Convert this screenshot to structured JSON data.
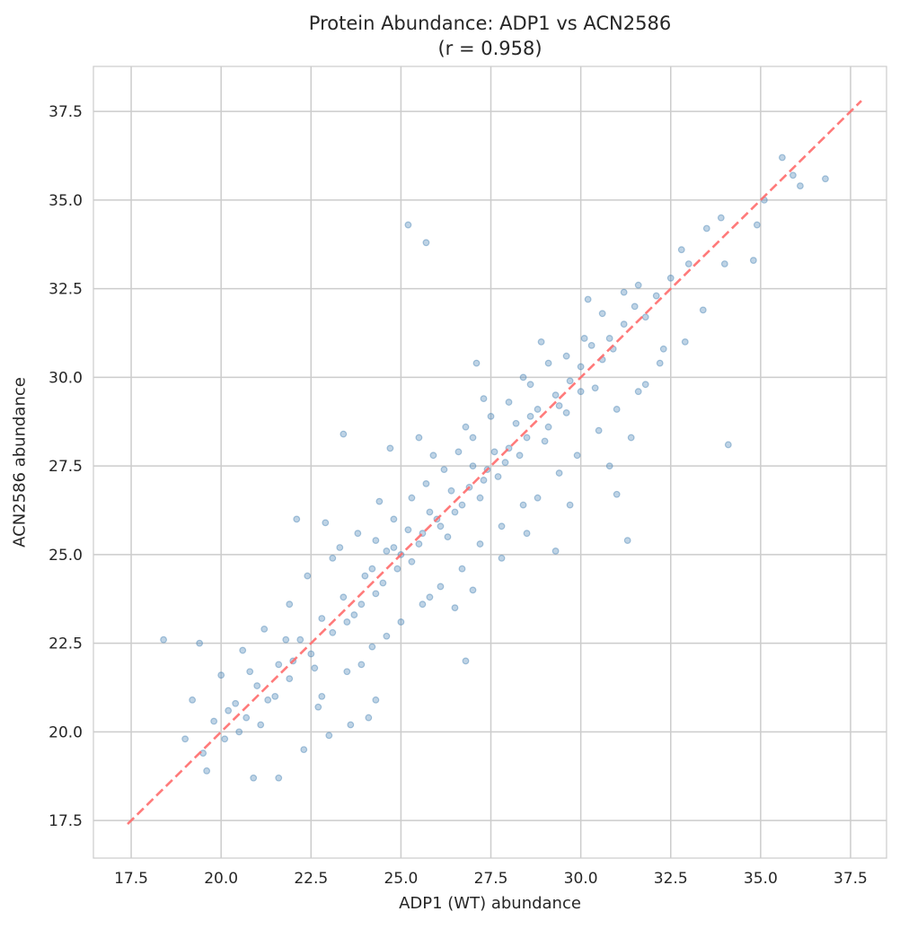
{
  "chart_data": {
    "type": "scatter",
    "title": "Protein Abundance: ADP1 vs ACN2586",
    "subtitle": "(r = 0.958)",
    "xlabel": "ADP1 (WT) abundance",
    "ylabel": "ACN2586 abundance",
    "xlim": [
      16.45,
      38.5
    ],
    "ylim": [
      16.44,
      38.77
    ],
    "xticks": [
      "17.5",
      "20.0",
      "22.5",
      "25.0",
      "27.5",
      "30.0",
      "32.5",
      "35.0",
      "37.5"
    ],
    "yticks": [
      "17.5",
      "20.0",
      "22.5",
      "25.0",
      "27.5",
      "30.0",
      "32.5",
      "35.0",
      "37.5"
    ],
    "grid": true,
    "point_color": "#4682b4",
    "reference_line": {
      "style": "dashed",
      "color": "#ff6b6b",
      "from": [
        17.4,
        17.4
      ],
      "to": [
        37.8,
        37.8
      ]
    },
    "points": [
      [
        25.2,
        34.3
      ],
      [
        25.7,
        33.8
      ],
      [
        34.1,
        28.1
      ],
      [
        23.4,
        28.4
      ],
      [
        31.0,
        26.7
      ],
      [
        31.3,
        25.4
      ],
      [
        29.3,
        25.1
      ],
      [
        26.8,
        22.0
      ],
      [
        18.4,
        22.6
      ],
      [
        19.4,
        22.5
      ],
      [
        36.8,
        35.6
      ],
      [
        35.6,
        36.2
      ],
      [
        35.9,
        35.7
      ],
      [
        36.1,
        35.4
      ],
      [
        35.1,
        35.0
      ],
      [
        34.9,
        34.3
      ],
      [
        33.9,
        34.5
      ],
      [
        32.3,
        30.8
      ],
      [
        31.8,
        29.8
      ],
      [
        22.1,
        26.0
      ],
      [
        22.9,
        25.9
      ],
      [
        24.7,
        28.0
      ],
      [
        25.5,
        28.3
      ],
      [
        27.1,
        30.4
      ],
      [
        28.4,
        30.0
      ],
      [
        28.9,
        31.0
      ],
      [
        30.2,
        32.2
      ],
      [
        34.0,
        33.2
      ],
      [
        34.8,
        33.3
      ],
      [
        33.5,
        34.2
      ],
      [
        33.0,
        33.2
      ],
      [
        32.8,
        33.6
      ],
      [
        32.5,
        32.8
      ],
      [
        32.1,
        32.3
      ],
      [
        31.8,
        31.7
      ],
      [
        31.5,
        32.0
      ],
      [
        31.2,
        31.5
      ],
      [
        30.9,
        30.8
      ],
      [
        30.6,
        30.5
      ],
      [
        30.3,
        30.9
      ],
      [
        30.0,
        29.6
      ],
      [
        29.7,
        29.9
      ],
      [
        29.4,
        29.2
      ],
      [
        29.1,
        28.6
      ],
      [
        28.8,
        29.1
      ],
      [
        28.5,
        28.3
      ],
      [
        28.2,
        28.7
      ],
      [
        27.9,
        27.6
      ],
      [
        27.6,
        27.9
      ],
      [
        27.3,
        27.1
      ],
      [
        27.0,
        27.5
      ],
      [
        26.7,
        26.4
      ],
      [
        26.4,
        26.8
      ],
      [
        26.1,
        25.8
      ],
      [
        25.8,
        26.2
      ],
      [
        25.5,
        25.3
      ],
      [
        25.2,
        25.7
      ],
      [
        24.9,
        24.6
      ],
      [
        24.6,
        25.1
      ],
      [
        24.3,
        23.9
      ],
      [
        24.0,
        24.4
      ],
      [
        23.7,
        23.3
      ],
      [
        23.4,
        23.8
      ],
      [
        23.1,
        22.8
      ],
      [
        22.8,
        23.2
      ],
      [
        22.5,
        22.2
      ],
      [
        22.2,
        22.6
      ],
      [
        21.9,
        21.5
      ],
      [
        21.6,
        21.9
      ],
      [
        21.3,
        20.9
      ],
      [
        21.0,
        21.3
      ],
      [
        20.7,
        20.4
      ],
      [
        20.4,
        20.8
      ],
      [
        20.1,
        19.8
      ],
      [
        19.8,
        20.3
      ],
      [
        19.5,
        19.4
      ],
      [
        19.2,
        20.9
      ],
      [
        19.0,
        19.8
      ],
      [
        19.6,
        18.9
      ],
      [
        20.9,
        18.7
      ],
      [
        21.6,
        18.7
      ],
      [
        23.0,
        19.9
      ],
      [
        23.6,
        20.2
      ],
      [
        24.1,
        20.4
      ],
      [
        24.3,
        20.9
      ],
      [
        22.3,
        19.5
      ],
      [
        20.0,
        21.6
      ],
      [
        20.6,
        22.3
      ],
      [
        21.2,
        22.9
      ],
      [
        21.9,
        23.6
      ],
      [
        22.4,
        24.4
      ],
      [
        23.1,
        24.9
      ],
      [
        23.8,
        25.6
      ],
      [
        24.3,
        25.4
      ],
      [
        24.8,
        26.0
      ],
      [
        25.3,
        26.6
      ],
      [
        25.7,
        27.0
      ],
      [
        26.2,
        27.4
      ],
      [
        26.6,
        27.9
      ],
      [
        27.0,
        28.3
      ],
      [
        27.5,
        28.9
      ],
      [
        28.0,
        29.3
      ],
      [
        28.6,
        29.8
      ],
      [
        29.1,
        30.4
      ],
      [
        29.6,
        30.6
      ],
      [
        30.1,
        31.1
      ],
      [
        30.6,
        31.8
      ],
      [
        31.2,
        32.4
      ],
      [
        31.6,
        32.6
      ],
      [
        22.8,
        21.0
      ],
      [
        23.5,
        21.7
      ],
      [
        24.2,
        22.4
      ],
      [
        25.0,
        23.1
      ],
      [
        25.6,
        23.6
      ],
      [
        26.1,
        24.1
      ],
      [
        26.7,
        24.6
      ],
      [
        27.2,
        25.3
      ],
      [
        27.8,
        25.8
      ],
      [
        28.4,
        26.4
      ],
      [
        28.8,
        26.6
      ],
      [
        29.4,
        27.3
      ],
      [
        29.9,
        27.8
      ],
      [
        30.5,
        28.5
      ],
      [
        31.0,
        29.1
      ],
      [
        31.6,
        29.6
      ],
      [
        32.2,
        30.4
      ],
      [
        32.9,
        31.0
      ],
      [
        33.4,
        31.9
      ],
      [
        26.0,
        26.0
      ],
      [
        26.3,
        25.5
      ],
      [
        26.5,
        26.2
      ],
      [
        26.9,
        26.9
      ],
      [
        27.2,
        26.6
      ],
      [
        27.4,
        27.4
      ],
      [
        27.7,
        27.2
      ],
      [
        28.0,
        28.0
      ],
      [
        25.0,
        25.0
      ],
      [
        25.3,
        24.8
      ],
      [
        25.6,
        25.6
      ],
      [
        24.5,
        24.2
      ],
      [
        24.8,
        25.2
      ],
      [
        23.9,
        23.6
      ],
      [
        24.2,
        24.6
      ],
      [
        23.5,
        23.1
      ],
      [
        28.3,
        27.8
      ],
      [
        28.6,
        28.9
      ],
      [
        29.0,
        28.2
      ],
      [
        29.3,
        29.5
      ],
      [
        29.6,
        29.0
      ],
      [
        30.0,
        30.3
      ],
      [
        30.4,
        29.7
      ],
      [
        30.8,
        31.1
      ],
      [
        22.0,
        22.0
      ],
      [
        21.5,
        21.0
      ],
      [
        21.8,
        22.6
      ],
      [
        22.6,
        21.8
      ],
      [
        20.5,
        20.0
      ],
      [
        20.2,
        20.6
      ],
      [
        21.1,
        20.2
      ],
      [
        20.8,
        21.7
      ],
      [
        26.8,
        28.6
      ],
      [
        27.3,
        29.4
      ],
      [
        25.9,
        27.8
      ],
      [
        24.4,
        26.5
      ],
      [
        23.3,
        25.2
      ],
      [
        27.8,
        24.9
      ],
      [
        28.5,
        25.6
      ],
      [
        27.0,
        24.0
      ],
      [
        25.8,
        23.8
      ],
      [
        26.5,
        23.5
      ],
      [
        24.6,
        22.7
      ],
      [
        23.9,
        21.9
      ],
      [
        22.7,
        20.7
      ],
      [
        30.8,
        27.5
      ],
      [
        31.4,
        28.3
      ],
      [
        29.7,
        26.4
      ]
    ]
  }
}
